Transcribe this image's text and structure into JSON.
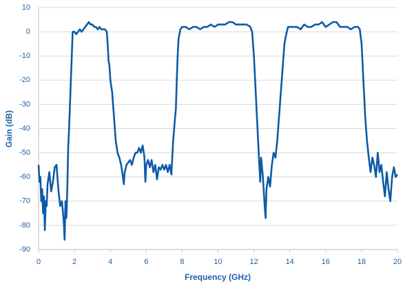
{
  "chart_data": {
    "type": "line",
    "xlabel": "Frequency (GHz)",
    "ylabel": "Gain (dB)",
    "color": "#0e5aa7",
    "grid": true,
    "xlim": [
      0,
      20
    ],
    "xticks": [
      0,
      2,
      4,
      6,
      8,
      10,
      12,
      14,
      16,
      18,
      20
    ],
    "ylim": [
      -90,
      10
    ],
    "yticks": [
      -90,
      -80,
      -70,
      -60,
      -50,
      -40,
      -30,
      -20,
      -10,
      0,
      10
    ],
    "x": [
      0,
      0.05,
      0.1,
      0.15,
      0.2,
      0.25,
      0.3,
      0.35,
      0.4,
      0.45,
      0.5,
      0.6,
      0.7,
      0.8,
      0.9,
      1.0,
      1.1,
      1.2,
      1.3,
      1.4,
      1.45,
      1.5,
      1.55,
      1.6,
      1.65,
      1.7,
      1.75,
      1.8,
      1.85,
      1.9,
      2.0,
      2.1,
      2.2,
      2.3,
      2.4,
      2.5,
      2.6,
      2.7,
      2.8,
      2.9,
      3.0,
      3.1,
      3.2,
      3.3,
      3.4,
      3.5,
      3.6,
      3.7,
      3.8,
      3.85,
      3.9,
      3.95,
      4.0,
      4.1,
      4.2,
      4.3,
      4.4,
      4.5,
      4.6,
      4.7,
      4.75,
      4.8,
      4.9,
      5.0,
      5.1,
      5.2,
      5.3,
      5.4,
      5.5,
      5.6,
      5.7,
      5.8,
      5.9,
      5.95,
      6.0,
      6.1,
      6.2,
      6.3,
      6.4,
      6.5,
      6.6,
      6.7,
      6.8,
      6.9,
      7.0,
      7.1,
      7.2,
      7.3,
      7.4,
      7.5,
      7.6,
      7.65,
      7.7,
      7.75,
      7.8,
      7.9,
      8.0,
      8.2,
      8.4,
      8.6,
      8.8,
      9.0,
      9.2,
      9.4,
      9.6,
      9.8,
      10.0,
      10.2,
      10.4,
      10.6,
      10.8,
      11.0,
      11.2,
      11.4,
      11.6,
      11.8,
      11.9,
      12.0,
      12.1,
      12.2,
      12.3,
      12.35,
      12.4,
      12.5,
      12.6,
      12.65,
      12.7,
      12.8,
      12.9,
      13.0,
      13.1,
      13.2,
      13.3,
      13.4,
      13.5,
      13.6,
      13.7,
      13.8,
      13.9,
      14.0,
      14.2,
      14.4,
      14.6,
      14.8,
      15.0,
      15.2,
      15.4,
      15.6,
      15.8,
      16.0,
      16.2,
      16.4,
      16.6,
      16.8,
      17.0,
      17.2,
      17.4,
      17.6,
      17.8,
      17.9,
      18.0,
      18.1,
      18.2,
      18.3,
      18.4,
      18.5,
      18.6,
      18.7,
      18.8,
      18.9,
      19.0,
      19.1,
      19.2,
      19.3,
      19.4,
      19.5,
      19.6,
      19.7,
      19.8,
      19.9,
      20.0
    ],
    "values": [
      -55,
      -62,
      -60,
      -70,
      -65,
      -75,
      -68,
      -82,
      -70,
      -72,
      -63,
      -58,
      -66,
      -62,
      -56,
      -55,
      -65,
      -72,
      -70,
      -78,
      -86,
      -70,
      -77,
      -65,
      -48,
      -40,
      -30,
      -20,
      -10,
      0,
      0,
      -1,
      0,
      1,
      0,
      1,
      2,
      3,
      4,
      3,
      3,
      2,
      2,
      1,
      2,
      1,
      1,
      1,
      0,
      -5,
      -12,
      -14,
      -20,
      -25,
      -35,
      -45,
      -50,
      -52,
      -55,
      -60,
      -63,
      -58,
      -55,
      -54,
      -53,
      -55,
      -52,
      -50,
      -50,
      -48,
      -50,
      -47,
      -52,
      -62,
      -55,
      -53,
      -56,
      -53,
      -58,
      -55,
      -61,
      -56,
      -57,
      -55,
      -57,
      -55,
      -58,
      -55,
      -59,
      -45,
      -36,
      -32,
      -20,
      -10,
      -3,
      1,
      2,
      2,
      1,
      2,
      2,
      1,
      2,
      2,
      3,
      2,
      3,
      3,
      3,
      4,
      4,
      3,
      3,
      3,
      3,
      2,
      0,
      -10,
      -25,
      -40,
      -55,
      -62,
      -52,
      -60,
      -72,
      -77,
      -65,
      -60,
      -64,
      -55,
      -50,
      -52,
      -45,
      -35,
      -25,
      -15,
      -5,
      -1,
      2,
      2,
      2,
      2,
      1,
      3,
      2,
      2,
      3,
      3,
      4,
      2,
      3,
      4,
      4,
      2,
      2,
      2,
      1,
      2,
      2,
      1,
      -5,
      -20,
      -35,
      -45,
      -52,
      -58,
      -52,
      -55,
      -60,
      -50,
      -58,
      -55,
      -62,
      -68,
      -58,
      -65,
      -70,
      -60,
      -56,
      -60,
      -59
    ]
  }
}
